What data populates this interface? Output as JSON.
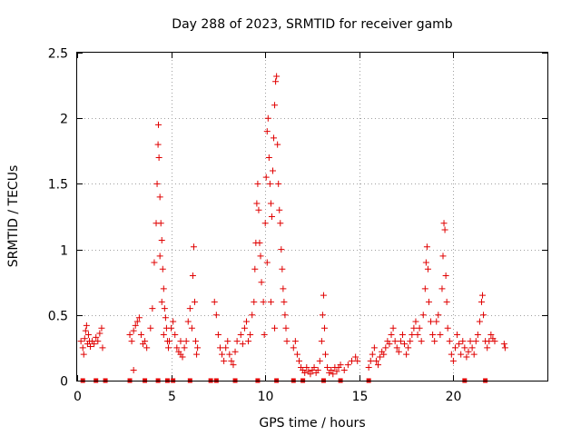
{
  "chart_data": {
    "type": "scatter",
    "title": "Day 288 of 2023, SRMTID for receiver gamb",
    "xlabel": "GPS time / hours",
    "ylabel": "SRMTID / TECUs",
    "xlim": [
      0,
      25
    ],
    "ylim": [
      0,
      2.5
    ],
    "xticks": [
      0,
      5,
      10,
      15,
      20
    ],
    "xtick_labels": [
      "0",
      "5",
      "10",
      "15",
      "20"
    ],
    "yticks": [
      0,
      0.5,
      1,
      1.5,
      2,
      2.5
    ],
    "ytick_labels": [
      "0",
      "0.5",
      "1",
      "1.5",
      "2",
      "2.5"
    ],
    "grid": true,
    "marker": "+",
    "marker_color": "#e00000",
    "series": [
      {
        "name": "SRMTID",
        "points": [
          [
            0.2,
            0.3
          ],
          [
            0.3,
            0.25
          ],
          [
            0.35,
            0.2
          ],
          [
            0.4,
            0.32
          ],
          [
            0.45,
            0.38
          ],
          [
            0.5,
            0.42
          ],
          [
            0.55,
            0.28
          ],
          [
            0.6,
            0.35
          ],
          [
            0.65,
            0.3
          ],
          [
            0.7,
            0.26
          ],
          [
            0.8,
            0.3
          ],
          [
            0.9,
            0.28
          ],
          [
            1.0,
            0.33
          ],
          [
            1.1,
            0.3
          ],
          [
            1.2,
            0.36
          ],
          [
            1.3,
            0.4
          ],
          [
            1.35,
            0.25
          ],
          [
            2.8,
            0.35
          ],
          [
            2.9,
            0.3
          ],
          [
            3.0,
            0.38
          ],
          [
            3.1,
            0.42
          ],
          [
            3.2,
            0.45
          ],
          [
            3.3,
            0.48
          ],
          [
            3.4,
            0.35
          ],
          [
            3.5,
            0.28
          ],
          [
            3.6,
            0.3
          ],
          [
            3.7,
            0.25
          ],
          [
            3.0,
            0.08
          ],
          [
            3.9,
            0.4
          ],
          [
            4.0,
            0.55
          ],
          [
            4.1,
            0.9
          ],
          [
            4.2,
            1.2
          ],
          [
            4.25,
            1.5
          ],
          [
            4.3,
            1.8
          ],
          [
            4.32,
            1.95
          ],
          [
            4.35,
            1.7
          ],
          [
            4.4,
            1.4
          ],
          [
            4.45,
            1.2
          ],
          [
            4.5,
            1.07
          ],
          [
            4.55,
            0.85
          ],
          [
            4.6,
            0.7
          ],
          [
            4.65,
            0.55
          ],
          [
            4.7,
            0.48
          ],
          [
            4.75,
            0.4
          ],
          [
            4.8,
            0.3
          ],
          [
            4.85,
            0.25
          ],
          [
            4.4,
            0.95
          ],
          [
            4.5,
            0.6
          ],
          [
            4.6,
            0.35
          ],
          [
            4.9,
            0.3
          ],
          [
            5.0,
            0.4
          ],
          [
            5.1,
            0.45
          ],
          [
            5.2,
            0.35
          ],
          [
            5.3,
            0.25
          ],
          [
            5.4,
            0.22
          ],
          [
            5.5,
            0.2
          ],
          [
            5.6,
            0.18
          ],
          [
            5.7,
            0.25
          ],
          [
            5.8,
            0.3
          ],
          [
            5.9,
            0.45
          ],
          [
            6.0,
            0.55
          ],
          [
            6.1,
            0.4
          ],
          [
            6.15,
            0.8
          ],
          [
            6.2,
            1.02
          ],
          [
            6.25,
            0.6
          ],
          [
            6.3,
            0.3
          ],
          [
            6.35,
            0.2
          ],
          [
            6.4,
            0.25
          ],
          [
            5.5,
            0.3
          ],
          [
            7.3,
            0.6
          ],
          [
            7.4,
            0.5
          ],
          [
            7.5,
            0.35
          ],
          [
            7.6,
            0.25
          ],
          [
            7.7,
            0.2
          ],
          [
            7.8,
            0.15
          ],
          [
            7.9,
            0.25
          ],
          [
            8.0,
            0.3
          ],
          [
            8.1,
            0.2
          ],
          [
            8.2,
            0.15
          ],
          [
            8.3,
            0.12
          ],
          [
            8.4,
            0.22
          ],
          [
            8.5,
            0.3
          ],
          [
            8.7,
            0.35
          ],
          [
            8.8,
            0.28
          ],
          [
            8.9,
            0.4
          ],
          [
            9.0,
            0.45
          ],
          [
            9.1,
            0.3
          ],
          [
            9.2,
            0.35
          ],
          [
            9.3,
            0.5
          ],
          [
            9.4,
            0.6
          ],
          [
            9.45,
            0.85
          ],
          [
            9.5,
            1.05
          ],
          [
            9.55,
            1.35
          ],
          [
            9.6,
            1.5
          ],
          [
            9.65,
            1.3
          ],
          [
            9.7,
            1.05
          ],
          [
            9.75,
            0.95
          ],
          [
            9.8,
            0.75
          ],
          [
            9.9,
            0.6
          ],
          [
            9.95,
            0.35
          ],
          [
            10.0,
            1.2
          ],
          [
            10.05,
            1.55
          ],
          [
            10.1,
            1.9
          ],
          [
            10.15,
            2.0
          ],
          [
            10.2,
            1.7
          ],
          [
            10.25,
            1.5
          ],
          [
            10.3,
            1.35
          ],
          [
            10.35,
            1.25
          ],
          [
            10.4,
            1.6
          ],
          [
            10.45,
            1.85
          ],
          [
            10.5,
            2.1
          ],
          [
            10.55,
            2.28
          ],
          [
            10.6,
            2.32
          ],
          [
            10.65,
            1.8
          ],
          [
            10.7,
            1.5
          ],
          [
            10.75,
            1.3
          ],
          [
            10.8,
            1.2
          ],
          [
            10.85,
            1.0
          ],
          [
            10.9,
            0.85
          ],
          [
            10.95,
            0.7
          ],
          [
            11.0,
            0.6
          ],
          [
            11.05,
            0.5
          ],
          [
            11.1,
            0.4
          ],
          [
            11.15,
            0.3
          ],
          [
            10.1,
            0.9
          ],
          [
            10.3,
            0.6
          ],
          [
            10.5,
            0.4
          ],
          [
            11.5,
            0.25
          ],
          [
            11.6,
            0.3
          ],
          [
            11.7,
            0.2
          ],
          [
            11.8,
            0.15
          ],
          [
            11.9,
            0.1
          ],
          [
            12.0,
            0.08
          ],
          [
            12.1,
            0.06
          ],
          [
            12.2,
            0.1
          ],
          [
            12.3,
            0.07
          ],
          [
            12.4,
            0.05
          ],
          [
            12.5,
            0.08
          ],
          [
            12.6,
            0.1
          ],
          [
            12.7,
            0.06
          ],
          [
            12.8,
            0.08
          ],
          [
            12.9,
            0.15
          ],
          [
            13.0,
            0.3
          ],
          [
            13.05,
            0.5
          ],
          [
            13.1,
            0.65
          ],
          [
            13.15,
            0.4
          ],
          [
            13.2,
            0.2
          ],
          [
            13.3,
            0.1
          ],
          [
            13.4,
            0.06
          ],
          [
            13.5,
            0.08
          ],
          [
            13.6,
            0.05
          ],
          [
            13.7,
            0.1
          ],
          [
            13.8,
            0.07
          ],
          [
            13.9,
            0.1
          ],
          [
            14.0,
            0.12
          ],
          [
            14.2,
            0.08
          ],
          [
            14.4,
            0.12
          ],
          [
            14.6,
            0.15
          ],
          [
            14.8,
            0.18
          ],
          [
            14.9,
            0.15
          ],
          [
            15.5,
            0.1
          ],
          [
            15.6,
            0.15
          ],
          [
            15.7,
            0.2
          ],
          [
            15.8,
            0.25
          ],
          [
            15.9,
            0.15
          ],
          [
            16.0,
            0.12
          ],
          [
            16.1,
            0.18
          ],
          [
            16.2,
            0.22
          ],
          [
            16.3,
            0.2
          ],
          [
            16.4,
            0.25
          ],
          [
            16.5,
            0.3
          ],
          [
            16.6,
            0.28
          ],
          [
            16.7,
            0.35
          ],
          [
            16.8,
            0.4
          ],
          [
            16.9,
            0.3
          ],
          [
            17.0,
            0.25
          ],
          [
            17.1,
            0.22
          ],
          [
            17.2,
            0.3
          ],
          [
            17.3,
            0.35
          ],
          [
            17.4,
            0.28
          ],
          [
            17.5,
            0.2
          ],
          [
            17.6,
            0.25
          ],
          [
            17.7,
            0.3
          ],
          [
            17.8,
            0.35
          ],
          [
            17.9,
            0.4
          ],
          [
            18.0,
            0.45
          ],
          [
            18.1,
            0.35
          ],
          [
            18.2,
            0.4
          ],
          [
            18.3,
            0.3
          ],
          [
            18.4,
            0.5
          ],
          [
            18.5,
            0.7
          ],
          [
            18.55,
            0.9
          ],
          [
            18.6,
            1.02
          ],
          [
            18.65,
            0.85
          ],
          [
            18.7,
            0.6
          ],
          [
            18.8,
            0.45
          ],
          [
            18.9,
            0.35
          ],
          [
            19.0,
            0.3
          ],
          [
            19.1,
            0.45
          ],
          [
            19.2,
            0.5
          ],
          [
            19.3,
            0.35
          ],
          [
            19.4,
            0.7
          ],
          [
            19.45,
            0.95
          ],
          [
            19.5,
            1.2
          ],
          [
            19.55,
            1.15
          ],
          [
            19.6,
            0.8
          ],
          [
            19.65,
            0.6
          ],
          [
            19.7,
            0.4
          ],
          [
            19.8,
            0.3
          ],
          [
            19.9,
            0.2
          ],
          [
            20.0,
            0.15
          ],
          [
            20.1,
            0.25
          ],
          [
            20.2,
            0.35
          ],
          [
            20.3,
            0.28
          ],
          [
            20.4,
            0.2
          ],
          [
            20.5,
            0.3
          ],
          [
            20.6,
            0.25
          ],
          [
            20.7,
            0.18
          ],
          [
            20.8,
            0.22
          ],
          [
            20.9,
            0.3
          ],
          [
            21.0,
            0.25
          ],
          [
            21.1,
            0.2
          ],
          [
            21.2,
            0.3
          ],
          [
            21.3,
            0.35
          ],
          [
            21.4,
            0.45
          ],
          [
            21.5,
            0.6
          ],
          [
            21.55,
            0.65
          ],
          [
            21.6,
            0.5
          ],
          [
            21.7,
            0.3
          ],
          [
            21.8,
            0.25
          ],
          [
            21.9,
            0.3
          ],
          [
            22.0,
            0.35
          ],
          [
            22.1,
            0.32
          ],
          [
            22.2,
            0.3
          ],
          [
            22.7,
            0.28
          ],
          [
            22.75,
            0.25
          ]
        ]
      }
    ],
    "baseline_markers": {
      "marker": "square",
      "y": 0,
      "x": [
        0.3,
        1.0,
        1.5,
        2.8,
        3.6,
        4.3,
        4.8,
        5.1,
        6.0,
        7.1,
        7.4,
        8.4,
        9.6,
        10.6,
        11.5,
        12.0,
        13.1,
        14.0,
        15.5,
        20.6,
        21.7
      ]
    }
  }
}
